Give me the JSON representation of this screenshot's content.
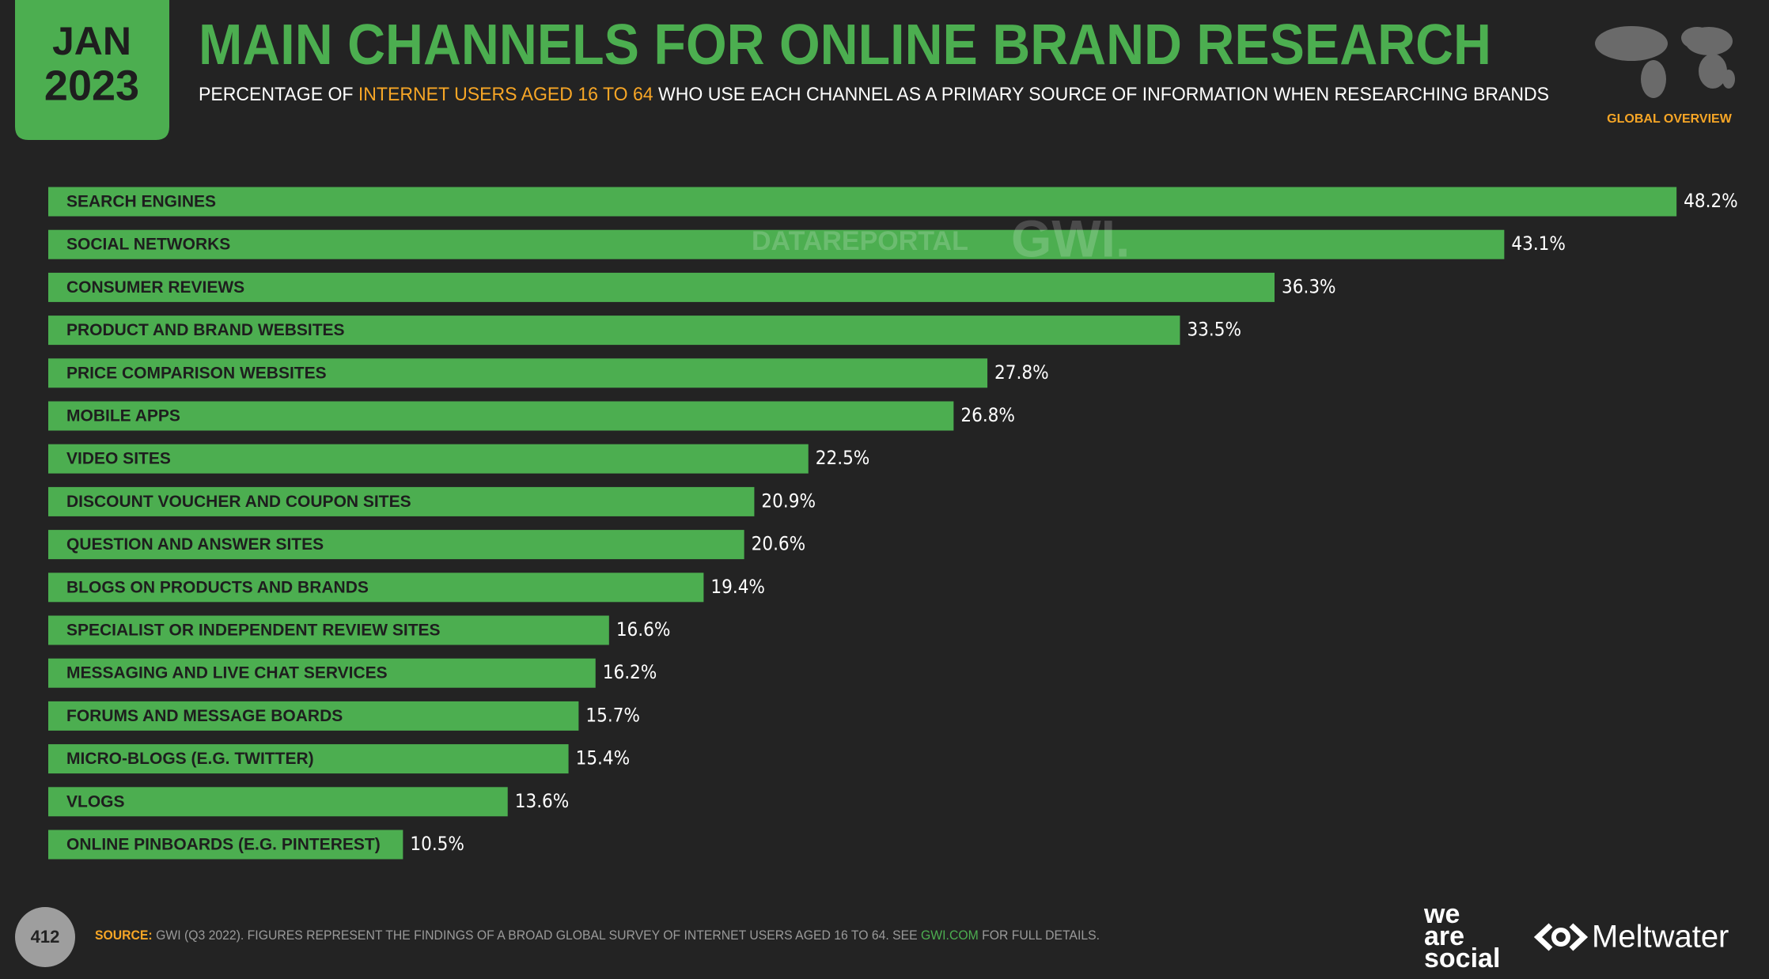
{
  "chart_data": {
    "type": "bar",
    "orientation": "horizontal",
    "badge": {
      "month": "JAN",
      "year": "2023"
    },
    "title": "MAIN CHANNELS FOR ONLINE BRAND RESEARCH",
    "subtitle": [
      "PERCENTAGE OF ",
      "INTERNET USERS AGED 16 TO 64",
      " WHO USE EACH CHANNEL AS A PRIMARY SOURCE OF INFORMATION WHEN RESEARCHING BRANDS"
    ],
    "region": "GLOBAL OVERVIEW",
    "watermark": [
      "DATAREPORTAL",
      "GWI."
    ],
    "color": "#4cae50",
    "categories": [
      "SEARCH ENGINES",
      "SOCIAL NETWORKS",
      "CONSUMER REVIEWS",
      "PRODUCT AND BRAND WEBSITES",
      "PRICE COMPARISON WEBSITES",
      "MOBILE APPS",
      "VIDEO SITES",
      "DISCOUNT VOUCHER AND COUPON SITES",
      "QUESTION AND ANSWER SITES",
      "BLOGS ON PRODUCTS AND BRANDS",
      "SPECIALIST OR INDEPENDENT REVIEW SITES",
      "MESSAGING AND LIVE CHAT SERVICES",
      "FORUMS AND MESSAGE BOARDS",
      "MICRO-BLOGS (E.G. TWITTER)",
      "VLOGS",
      "ONLINE PINBOARDS (E.G. PINTEREST)"
    ],
    "values": [
      48.2,
      43.1,
      36.3,
      33.5,
      27.8,
      26.8,
      22.5,
      20.9,
      20.6,
      19.4,
      16.6,
      16.2,
      15.7,
      15.4,
      13.6,
      10.5
    ],
    "value_labels": [
      "48.2%",
      "43.1%",
      "36.3%",
      "33.5%",
      "27.8%",
      "26.8%",
      "22.5%",
      "20.9%",
      "20.6%",
      "19.4%",
      "16.6%",
      "16.2%",
      "15.7%",
      "15.4%",
      "13.6%",
      "10.5%"
    ],
    "page_number": "412",
    "source": [
      "SOURCE:",
      " GWI (Q3 2022). FIGURES REPRESENT THE FINDINGS OF A BROAD GLOBAL SURVEY OF INTERNET USERS AGED 16 TO 64. SEE ",
      "GWI.COM",
      " FOR FULL DETAILS."
    ],
    "logos": {
      "we_are_social": [
        "we",
        "are",
        "social"
      ],
      "meltwater": "Meltwater"
    }
  }
}
